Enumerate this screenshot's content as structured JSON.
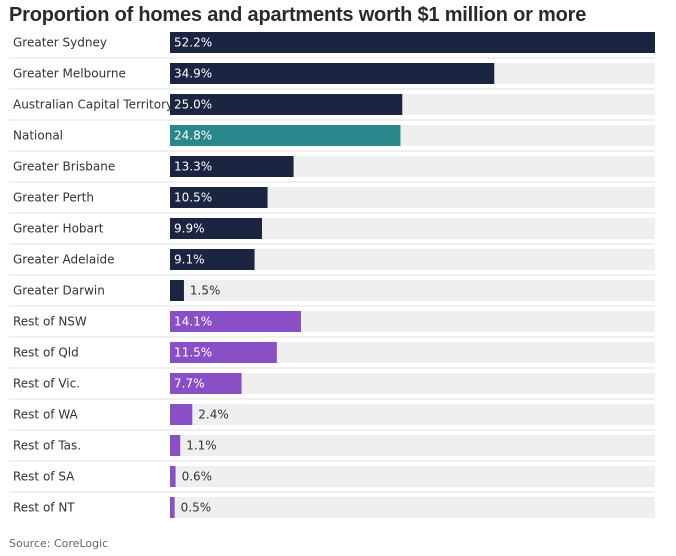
{
  "chart_data": {
    "type": "bar",
    "orientation": "horizontal",
    "title": "Proportion of homes and apartments worth $1 million or more",
    "source": "Source: CoreLogic",
    "xlim": [
      0,
      52.2
    ],
    "grid": false,
    "legend": "none",
    "categories": [
      "Greater Sydney",
      "Greater Melbourne",
      "Australian Capital Territory",
      "National",
      "Greater Brisbane",
      "Greater Perth",
      "Greater Hobart",
      "Greater Adelaide",
      "Greater Darwin",
      "Rest of NSW",
      "Rest of Qld",
      "Rest of Vic.",
      "Rest of WA",
      "Rest of Tas.",
      "Rest of SA",
      "Rest of NT"
    ],
    "values": [
      52.2,
      34.9,
      25.0,
      24.8,
      13.3,
      10.5,
      9.9,
      9.1,
      1.5,
      14.1,
      11.5,
      7.7,
      2.4,
      1.1,
      0.6,
      0.5
    ],
    "value_labels": [
      "52.2%",
      "34.9%",
      "25.0%",
      "24.8%",
      "13.3%",
      "10.5%",
      "9.9%",
      "9.1%",
      "1.5%",
      "14.1%",
      "11.5%",
      "7.7%",
      "2.4%",
      "1.1%",
      "0.6%",
      "0.5%"
    ],
    "groups": [
      "capital",
      "capital",
      "capital",
      "national",
      "capital",
      "capital",
      "capital",
      "capital",
      "capital",
      "rest",
      "rest",
      "rest",
      "rest",
      "rest",
      "rest",
      "rest"
    ],
    "colors": {
      "capital": "#1b2440",
      "national": "#27878a",
      "rest": "#8a4fc7",
      "track": "#efefef",
      "separator": "#e2e2e2",
      "label_inside": "#ffffff",
      "label_outside": "#333333",
      "category_text": "#333333"
    }
  }
}
